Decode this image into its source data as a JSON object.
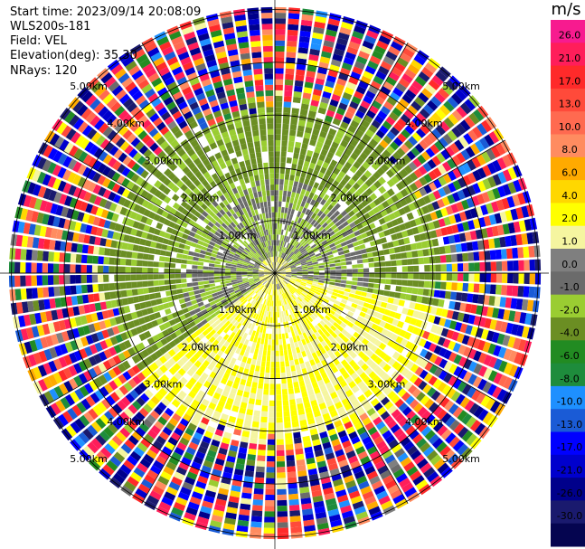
{
  "header": {
    "start_time": "Start time: 2023/09/14 20:08:09",
    "instrument": "WLS200s-181",
    "field": "Field: VEL",
    "elevation": "Elevation(deg): 35.30",
    "nrays": "NRays: 120"
  },
  "colorbar": {
    "unit": "m/s",
    "ticks": [
      "26.0",
      "21.0",
      "17.0",
      "13.0",
      "10.0",
      "8.0",
      "6.0",
      "4.0",
      "2.0",
      "1.0",
      "0.0",
      "-1.0",
      "-2.0",
      "-4.0",
      "-6.0",
      "-8.0",
      "-10.0",
      "-13.0",
      "-17.0",
      "-21.0",
      "-26.0",
      "-30.0"
    ],
    "colors": [
      "#f71b8f",
      "#ff1e5a",
      "#ff2a2a",
      "#ff4a3a",
      "#ff6a50",
      "#ff8c60",
      "#ffaa00",
      "#ffd700",
      "#ffff00",
      "#f5f5a0",
      "#7f7f7f",
      "#6b6b6b",
      "#9acd32",
      "#6b8e23",
      "#228b22",
      "#1e8c3c",
      "#1e90ff",
      "#1a5bd6",
      "#0000ff",
      "#0000cd",
      "#00008b",
      "#1a1a6e",
      "#050550"
    ]
  },
  "chart_data": {
    "type": "polar_ppi",
    "title": "",
    "field": "VEL",
    "units": "m/s",
    "elevation_deg": 35.3,
    "n_rays": 120,
    "range_rings_km": [
      {
        "km": 1,
        "label": "1.00km"
      },
      {
        "km": 2,
        "label": "2.00km"
      },
      {
        "km": 3,
        "label": "3.00km"
      },
      {
        "km": 4,
        "label": "4.00km"
      },
      {
        "km": 5,
        "label": "5.00km"
      }
    ],
    "max_range_km": 5.3,
    "colorbar_range": [
      -30,
      26
    ],
    "description_regions": [
      {
        "sector_deg": [
          100,
          230
        ],
        "range_km": [
          0.3,
          3.5
        ],
        "dominant_velocity_ms": 2.0
      },
      {
        "sector_deg": [
          230,
          100
        ],
        "range_km": [
          0.3,
          2.0
        ],
        "dominant_velocity_ms": -1.0
      },
      {
        "sector_deg": [
          230,
          100
        ],
        "range_km": [
          2.0,
          3.0
        ],
        "dominant_velocity_ms": -2.0
      },
      {
        "sector_deg": [
          0,
          360
        ],
        "range_km": [
          3.0,
          5.3
        ],
        "dominant_velocity_ms": "mixed/noise"
      }
    ]
  }
}
